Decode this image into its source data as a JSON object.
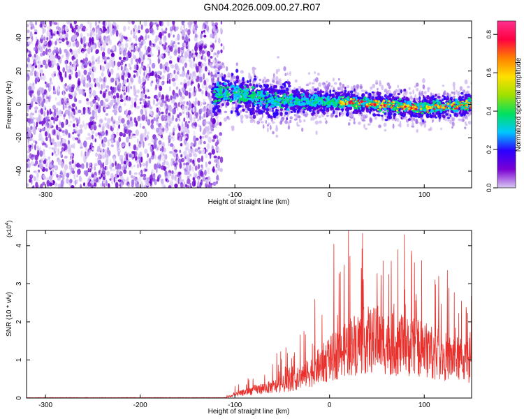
{
  "title": "GN04.2026.009.00.27.R07",
  "chart_data": [
    {
      "type": "heatmap",
      "title": "GN04.2026.009.00.27.R07",
      "xlabel": "Height of straight line (km)",
      "ylabel": "Frequency (Hz)",
      "xlim": [
        -320,
        150
      ],
      "ylim": [
        -50,
        50
      ],
      "xticks": [
        -300,
        -200,
        -100,
        0,
        100
      ],
      "xtick_labels": [
        "-300",
        "-200",
        "-100",
        "0",
        "100"
      ],
      "yticks": [
        -40,
        -20,
        0,
        20,
        40
      ],
      "ytick_labels": [
        "-40",
        "-20",
        "0",
        "20",
        "40"
      ],
      "noise_region_x": [
        -320,
        -120
      ],
      "signal_center_freq": [
        {
          "x": -125,
          "y": 5
        },
        {
          "x": -110,
          "y": 8
        },
        {
          "x": -80,
          "y": 4
        },
        {
          "x": -40,
          "y": 2
        },
        {
          "x": 0,
          "y": 2
        },
        {
          "x": 50,
          "y": 0
        },
        {
          "x": 100,
          "y": -2
        },
        {
          "x": 150,
          "y": 0
        }
      ],
      "colorbar": {
        "label": "Normalized spectral amplitude",
        "range": [
          0.0,
          0.87
        ],
        "ticks": [
          0.0,
          0.2,
          0.4,
          0.6,
          0.8
        ],
        "tick_labels": [
          "0.0",
          "0.2",
          "0.4",
          "0.6",
          "0.8"
        ],
        "colors": [
          "#d9c9f2",
          "#7b00d4",
          "#2a00ff",
          "#00c8ff",
          "#00e060",
          "#a0e000",
          "#ffe000",
          "#ff8000",
          "#ff0040",
          "#ff3090"
        ]
      }
    },
    {
      "type": "line",
      "xlabel": "Height of straight line (km)",
      "ylabel": "SNR (10 * v/v)",
      "y_multiplier_label": "(x10",
      "y_multiplier_exp": "4",
      "y_multiplier_close": ")",
      "xlim": [
        -320,
        150
      ],
      "ylim": [
        0,
        4.4
      ],
      "xticks": [
        -300,
        -200,
        -100,
        0,
        100
      ],
      "xtick_labels": [
        "-300",
        "-200",
        "-100",
        "0",
        "100"
      ],
      "yticks": [
        0,
        1,
        2,
        3,
        4
      ],
      "ytick_labels": [
        "0",
        "1",
        "2",
        "3",
        "4"
      ],
      "color": "#e8302c",
      "envelope": [
        {
          "x": -320,
          "mean": 0.0,
          "amp": 0.01
        },
        {
          "x": -110,
          "mean": 0.01,
          "amp": 0.02
        },
        {
          "x": -100,
          "mean": 0.1,
          "amp": 0.2
        },
        {
          "x": -80,
          "mean": 0.25,
          "amp": 0.5
        },
        {
          "x": -60,
          "mean": 0.35,
          "amp": 0.6
        },
        {
          "x": -40,
          "mean": 0.5,
          "amp": 0.9
        },
        {
          "x": -20,
          "mean": 0.8,
          "amp": 1.4
        },
        {
          "x": 0,
          "mean": 1.2,
          "amp": 2.0
        },
        {
          "x": 20,
          "mean": 1.6,
          "amp": 2.6
        },
        {
          "x": 40,
          "mean": 1.8,
          "amp": 2.8
        },
        {
          "x": 60,
          "mean": 1.7,
          "amp": 2.6
        },
        {
          "x": 80,
          "mean": 1.6,
          "amp": 2.4
        },
        {
          "x": 100,
          "mean": 1.5,
          "amp": 2.1
        },
        {
          "x": 120,
          "mean": 1.3,
          "amp": 1.8
        },
        {
          "x": 150,
          "mean": 1.1,
          "amp": 1.6
        }
      ]
    }
  ]
}
